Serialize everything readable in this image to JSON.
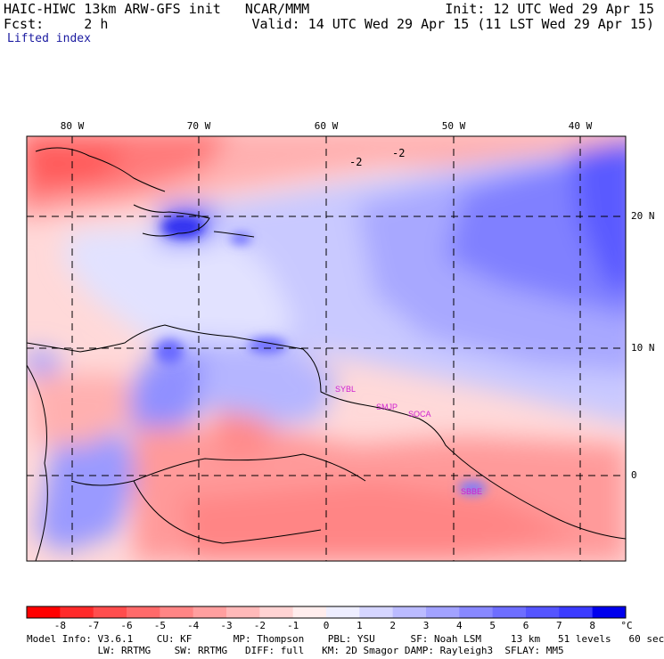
{
  "header": {
    "title": "HAIC-HIWC 13km ARW-GFS init   NCAR/MMM",
    "init": "Init: 12 UTC Wed 29 Apr 15",
    "fcst": "Fcst:     2 h",
    "valid": "Valid: 14 UTC Wed 29 Apr 15 (11 LST Wed 29 Apr 15)",
    "field": "Lifted index"
  },
  "map": {
    "lon_labels": [
      "80 W",
      "70 W",
      "60 W",
      "50 W",
      "40 W"
    ],
    "lat_labels": [
      "20 N",
      "10 N",
      "0"
    ],
    "contour_labels": [
      "-2",
      "-2"
    ],
    "station_labels": [
      "SYBL",
      "SMJP",
      "SOCA",
      "SBBE"
    ],
    "station_color": "#d020d0"
  },
  "colorbar": {
    "ticks": [
      "-8",
      "-7",
      "-6",
      "-5",
      "-4",
      "-3",
      "-2",
      "-1",
      "0",
      "1",
      "2",
      "3",
      "4",
      "5",
      "6",
      "7",
      "8"
    ],
    "unit": "°C",
    "colors": [
      "#ff0000",
      "#ff2a2a",
      "#ff4d4d",
      "#ff6a6a",
      "#ff8585",
      "#ff9f9f",
      "#ffb9b9",
      "#ffd3d3",
      "#ffeded",
      "#eeeeff",
      "#d5d5ff",
      "#bbbbff",
      "#a2a2ff",
      "#8888ff",
      "#6e6eff",
      "#5555ff",
      "#3b3bff",
      "#0000ee"
    ]
  },
  "model_info": {
    "line1": "Model Info: V3.6.1    CU: KF       MP: Thompson    PBL: YSU      SF: Noah LSM     13 km   51 levels   60 sec",
    "line2": "            LW: RRTMG    SW: RRTMG   DIFF: full   KM: 2D Smagor DAMP: Rayleigh3  SFLAY: MM5"
  }
}
